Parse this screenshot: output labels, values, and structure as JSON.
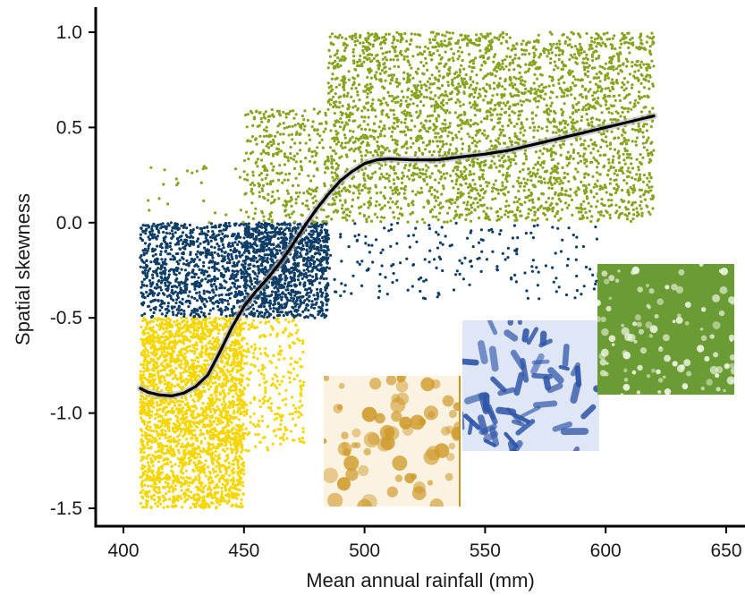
{
  "chart_data": {
    "type": "scatter",
    "xlabel": "Mean annual rainfall (mm)",
    "ylabel": "Spatial skewness",
    "xlim": [
      390,
      655
    ],
    "ylim": [
      -1.58,
      1.08
    ],
    "x_ticks": [
      400,
      450,
      500,
      550,
      600,
      650
    ],
    "y_ticks": [
      1.0,
      0.5,
      0.0,
      -0.5,
      -1.0,
      -1.5
    ],
    "x_tick_labels": [
      "400",
      "450",
      "500",
      "550",
      "600",
      "650"
    ],
    "y_tick_labels": [
      "1.0",
      "0.5",
      "0.0",
      "-0.5",
      "-1.0",
      "-1.5"
    ],
    "grid": false,
    "legend": "none",
    "series": [
      {
        "color": "#f5d600",
        "description": "skewness below -0.5 (spotted pattern regime)",
        "clusters": [
          {
            "x_range": [
              407,
              450
            ],
            "y_range": [
              -1.5,
              -0.5
            ],
            "points": 2600
          },
          {
            "x_range": [
              450,
              475
            ],
            "y_range": [
              -1.2,
              -0.5
            ],
            "points": 260
          }
        ]
      },
      {
        "color": "#0e3d66",
        "description": "skewness between -0.5 and 0 (labyrinth pattern regime)",
        "clusters": [
          {
            "x_range": [
              407,
              450
            ],
            "y_range": [
              -0.5,
              0.0
            ],
            "points": 900
          },
          {
            "x_range": [
              450,
              485
            ],
            "y_range": [
              -0.5,
              0.0
            ],
            "points": 1200
          },
          {
            "x_range": [
              485,
              600
            ],
            "y_range": [
              -0.4,
              0.0
            ],
            "points": 200
          }
        ]
      },
      {
        "color": "#86a41e",
        "description": "skewness above 0 (gapped pattern regime)",
        "clusters": [
          {
            "x_range": [
              410,
              450
            ],
            "y_range": [
              0.0,
              0.3
            ],
            "points": 25
          },
          {
            "x_range": [
              450,
              485
            ],
            "y_range": [
              0.0,
              0.6
            ],
            "points": 350
          },
          {
            "x_range": [
              485,
              620
            ],
            "y_range": [
              0.0,
              1.0
            ],
            "points": 3200
          }
        ]
      }
    ],
    "trend_line": {
      "color": "#000000",
      "x": [
        407,
        410,
        415,
        420,
        425,
        430,
        435,
        440,
        445,
        450,
        455,
        460,
        465,
        470,
        475,
        480,
        485,
        490,
        495,
        500,
        505,
        510,
        520,
        530,
        540,
        550,
        560,
        570,
        580,
        590,
        600,
        610,
        620
      ],
      "y": [
        -0.87,
        -0.89,
        -0.905,
        -0.91,
        -0.895,
        -0.86,
        -0.8,
        -0.68,
        -0.55,
        -0.44,
        -0.36,
        -0.29,
        -0.21,
        -0.12,
        -0.02,
        0.07,
        0.15,
        0.22,
        0.27,
        0.31,
        0.33,
        0.335,
        0.33,
        0.33,
        0.345,
        0.36,
        0.38,
        0.41,
        0.44,
        0.47,
        0.5,
        0.53,
        0.56
      ]
    },
    "pattern_thumbnails": [
      {
        "pattern": "spots",
        "color": "#cf9a2b"
      },
      {
        "pattern": "labyrinth",
        "color": "#2f56a8"
      },
      {
        "pattern": "gaps",
        "color": "#6b9b34"
      }
    ]
  }
}
